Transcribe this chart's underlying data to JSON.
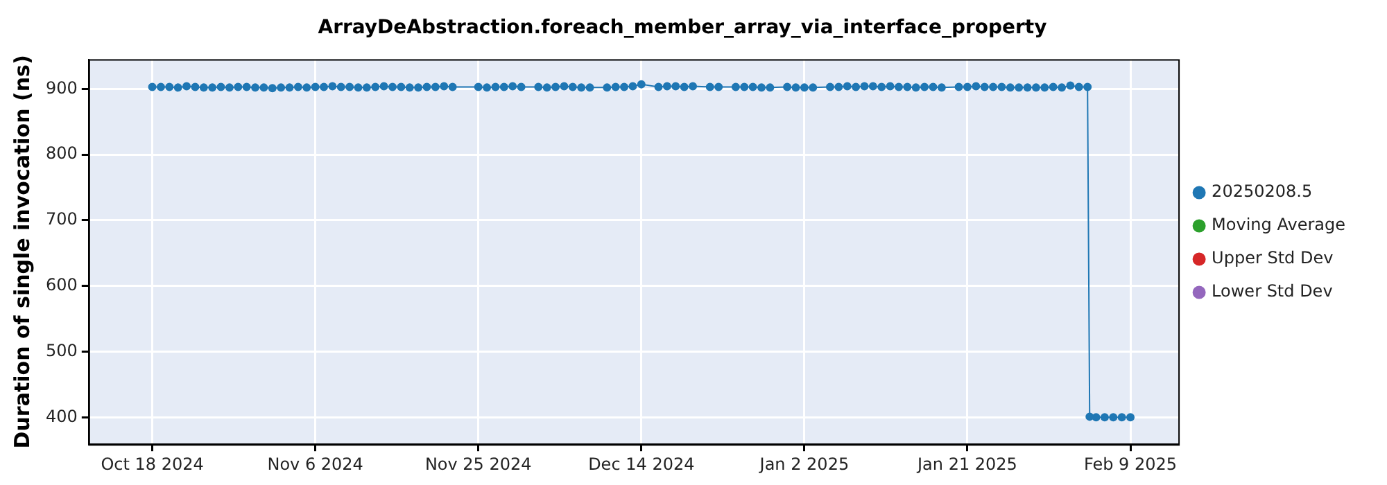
{
  "chart_data": {
    "type": "line",
    "title": "ArrayDeAbstraction.foreach_member_array_via_interface_property",
    "ylabel": "Duration of single invocation (ns)",
    "x": [
      "2024-10-18",
      "2024-10-19",
      "2024-10-20",
      "2024-10-21",
      "2024-10-22",
      "2024-10-23",
      "2024-10-24",
      "2024-10-25",
      "2024-10-26",
      "2024-10-27",
      "2024-10-28",
      "2024-10-29",
      "2024-10-30",
      "2024-10-31",
      "2024-11-01",
      "2024-11-02",
      "2024-11-03",
      "2024-11-04",
      "2024-11-05",
      "2024-11-06",
      "2024-11-07",
      "2024-11-08",
      "2024-11-09",
      "2024-11-10",
      "2024-11-11",
      "2024-11-12",
      "2024-11-13",
      "2024-11-14",
      "2024-11-15",
      "2024-11-16",
      "2024-11-17",
      "2024-11-18",
      "2024-11-19",
      "2024-11-20",
      "2024-11-21",
      "2024-11-22",
      "2024-11-25",
      "2024-11-26",
      "2024-11-27",
      "2024-11-28",
      "2024-11-29",
      "2024-11-30",
      "2024-12-02",
      "2024-12-03",
      "2024-12-04",
      "2024-12-05",
      "2024-12-06",
      "2024-12-07",
      "2024-12-08",
      "2024-12-10",
      "2024-12-11",
      "2024-12-12",
      "2024-12-13",
      "2024-12-14",
      "2024-12-16",
      "2024-12-17",
      "2024-12-18",
      "2024-12-19",
      "2024-12-20",
      "2024-12-22",
      "2024-12-23",
      "2024-12-25",
      "2024-12-26",
      "2024-12-27",
      "2024-12-28",
      "2024-12-29",
      "2024-12-31",
      "2025-01-01",
      "2025-01-02",
      "2025-01-03",
      "2025-01-05",
      "2025-01-06",
      "2025-01-07",
      "2025-01-08",
      "2025-01-09",
      "2025-01-10",
      "2025-01-11",
      "2025-01-12",
      "2025-01-13",
      "2025-01-14",
      "2025-01-15",
      "2025-01-16",
      "2025-01-17",
      "2025-01-18",
      "2025-01-20",
      "2025-01-21",
      "2025-01-22",
      "2025-01-23",
      "2025-01-24",
      "2025-01-25",
      "2025-01-26",
      "2025-01-27",
      "2025-01-28",
      "2025-01-29",
      "2025-01-30",
      "2025-01-31",
      "2025-02-01",
      "2025-02-02",
      "2025-02-03",
      "2025-02-04",
      "2025-02-04T06:00",
      "2025-02-05",
      "2025-02-06",
      "2025-02-07",
      "2025-02-08",
      "2025-02-09"
    ],
    "series": [
      {
        "name": "20250208.5",
        "color": "#1f77b4",
        "values": [
          903,
          903,
          903,
          902,
          904,
          903,
          902,
          902,
          903,
          902,
          903,
          903,
          902,
          902,
          901,
          902,
          902,
          903,
          902,
          903,
          903,
          904,
          903,
          903,
          902,
          902,
          903,
          904,
          903,
          903,
          902,
          902,
          903,
          903,
          904,
          903,
          903,
          902,
          903,
          903,
          904,
          903,
          903,
          902,
          903,
          904,
          903,
          902,
          902,
          902,
          903,
          903,
          904,
          907,
          903,
          904,
          904,
          903,
          904,
          903,
          903,
          903,
          903,
          903,
          902,
          902,
          903,
          902,
          902,
          902,
          903,
          903,
          904,
          903,
          904,
          904,
          903,
          904,
          903,
          903,
          902,
          903,
          903,
          902,
          903,
          903,
          904,
          903,
          903,
          903,
          902,
          902,
          902,
          902,
          902,
          903,
          902,
          905,
          903,
          903,
          401,
          400,
          400,
          400,
          400,
          400
        ]
      },
      {
        "name": "Moving Average",
        "color": "#2ca02c",
        "values": [
          null,
          null,
          null,
          null,
          null,
          null,
          null,
          null,
          null,
          null,
          null,
          null,
          null,
          null,
          null,
          null,
          null,
          null,
          null,
          null,
          null,
          null,
          null,
          null,
          null,
          null,
          null,
          null,
          null,
          null,
          null,
          null,
          null,
          null,
          null,
          null,
          null,
          null,
          null,
          null,
          null,
          null,
          null,
          null,
          null,
          null,
          null,
          null,
          null,
          null,
          null,
          null,
          null,
          null,
          null,
          null,
          null,
          null,
          null,
          null,
          null,
          null,
          null,
          null,
          null,
          null,
          null,
          null,
          null,
          null,
          null,
          null,
          null,
          null,
          null,
          null,
          null,
          null,
          null,
          null,
          null,
          null,
          null,
          null,
          null,
          null,
          null,
          null,
          null,
          null,
          null,
          null,
          null,
          null,
          null,
          null,
          null,
          null,
          null,
          null,
          null,
          null,
          null,
          null,
          null,
          null
        ]
      },
      {
        "name": "Upper Std Dev",
        "color": "#d62728",
        "values": [
          null,
          null,
          null,
          null,
          null,
          null,
          null,
          null,
          null,
          null,
          null,
          null,
          null,
          null,
          null,
          null,
          null,
          null,
          null,
          null,
          null,
          null,
          null,
          null,
          null,
          null,
          null,
          null,
          null,
          null,
          null,
          null,
          null,
          null,
          null,
          null,
          null,
          null,
          null,
          null,
          null,
          null,
          null,
          null,
          null,
          null,
          null,
          null,
          null,
          null,
          null,
          null,
          null,
          null,
          null,
          null,
          null,
          null,
          null,
          null,
          null,
          null,
          null,
          null,
          null,
          null,
          null,
          null,
          null,
          null,
          null,
          null,
          null,
          null,
          null,
          null,
          null,
          null,
          null,
          null,
          null,
          null,
          null,
          null,
          null,
          null,
          null,
          null,
          null,
          null,
          null,
          null,
          null,
          null,
          null,
          null,
          null,
          null,
          null,
          null,
          null,
          null,
          null,
          null,
          null,
          null
        ]
      },
      {
        "name": "Lower Std Dev",
        "color": "#9467bd",
        "values": [
          null,
          null,
          null,
          null,
          null,
          null,
          null,
          null,
          null,
          null,
          null,
          null,
          null,
          null,
          null,
          null,
          null,
          null,
          null,
          null,
          null,
          null,
          null,
          null,
          null,
          null,
          null,
          null,
          null,
          null,
          null,
          null,
          null,
          null,
          null,
          null,
          null,
          null,
          null,
          null,
          null,
          null,
          null,
          null,
          null,
          null,
          null,
          null,
          null,
          null,
          null,
          null,
          null,
          null,
          null,
          null,
          null,
          null,
          null,
          null,
          null,
          null,
          null,
          null,
          null,
          null,
          null,
          null,
          null,
          null,
          null,
          null,
          null,
          null,
          null,
          null,
          null,
          null,
          null,
          null,
          null,
          null,
          null,
          null,
          null,
          null,
          null,
          null,
          null,
          null,
          null,
          null,
          null,
          null,
          null,
          null,
          null,
          null,
          null,
          null,
          null,
          null,
          null,
          null,
          null,
          null
        ]
      }
    ],
    "xlim": [
      "2024-10-10T14:00",
      "2025-02-14T14:00"
    ],
    "xticks": [
      {
        "value": "2024-10-18",
        "label": "Oct 18 2024"
      },
      {
        "value": "2024-11-06",
        "label": "Nov 6 2024"
      },
      {
        "value": "2024-11-25",
        "label": "Nov 25 2024"
      },
      {
        "value": "2024-12-14",
        "label": "Dec 14 2024"
      },
      {
        "value": "2025-01-02",
        "label": "Jan 2 2025"
      },
      {
        "value": "2025-01-21",
        "label": "Jan 21 2025"
      },
      {
        "value": "2025-02-09",
        "label": "Feb 9 2025"
      }
    ],
    "ylim": [
      359,
      945
    ],
    "yticks": [
      400,
      500,
      600,
      700,
      800,
      900
    ],
    "grid": true,
    "legend": "right",
    "marker": "circle",
    "line_style": "solid"
  }
}
